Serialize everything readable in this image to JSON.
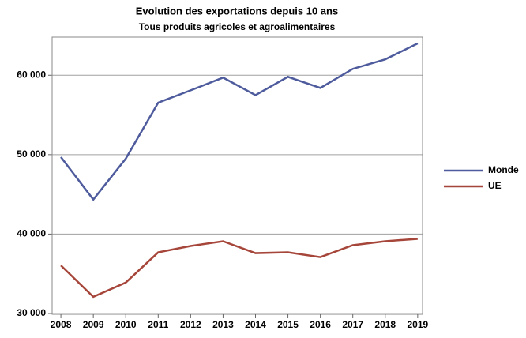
{
  "chart_data": {
    "type": "line",
    "title": "Evolution des exportations depuis 10 ans",
    "subtitle": "Tous produits agricoles et agroalimentaires",
    "x": [
      2008,
      2009,
      2010,
      2011,
      2012,
      2013,
      2014,
      2015,
      2016,
      2017,
      2018,
      2019
    ],
    "series": [
      {
        "name": "Monde",
        "color": "#4e5b9c",
        "values": [
          49700,
          44350,
          49500,
          56550,
          58100,
          59700,
          57500,
          59800,
          58400,
          60800,
          62000,
          64000
        ]
      },
      {
        "name": "UE",
        "color": "#a6463a",
        "values": [
          36050,
          32100,
          33900,
          37700,
          38500,
          39100,
          37600,
          37700,
          37100,
          38600,
          39100,
          39400
        ]
      }
    ],
    "xlim": [
      2007.73,
      2019.15
    ],
    "xticks": [
      2008,
      2009,
      2010,
      2011,
      2012,
      2013,
      2014,
      2015,
      2016,
      2017,
      2018,
      2019
    ],
    "ylim": [
      29900,
      64800
    ],
    "yticks": [
      {
        "value": 30000,
        "label": "30 000"
      },
      {
        "value": 40000,
        "label": "40 000"
      },
      {
        "value": 50000,
        "label": "50 000"
      },
      {
        "value": 60000,
        "label": "60 000"
      }
    ],
    "grid": true,
    "legend": "right"
  }
}
